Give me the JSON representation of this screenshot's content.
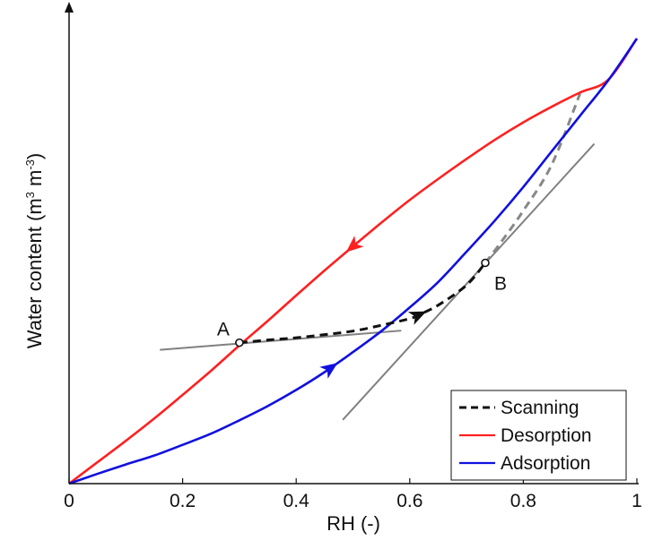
{
  "chart_data": {
    "type": "line",
    "title": "",
    "xlabel": "RH (-)",
    "ylabel": {
      "prefix": "Water content (m",
      "sup1": "3",
      "middle": " m",
      "sup2": "-3",
      "suffix": ")"
    },
    "xlim": [
      0,
      1
    ],
    "ylim": [
      0,
      1
    ],
    "grid": false,
    "x_ticks": [
      0,
      0.2,
      0.4,
      0.6,
      0.8,
      1
    ],
    "x_tick_labels": [
      "0",
      "0.2",
      "0.4",
      "0.6",
      "0.8",
      "1"
    ],
    "legend_position": "bottom-right",
    "series": [
      {
        "name": "Desorption",
        "color": "#ff2020",
        "style": "solid",
        "arrow_direction": "backward",
        "arrow_at_x": 0.5,
        "x": [
          0,
          0.05,
          0.1,
          0.15,
          0.2,
          0.25,
          0.3,
          0.35,
          0.4,
          0.45,
          0.5,
          0.55,
          0.6,
          0.65,
          0.7,
          0.75,
          0.8,
          0.85,
          0.9,
          0.95,
          1.0
        ],
        "y": [
          0,
          0.048,
          0.096,
          0.146,
          0.199,
          0.253,
          0.31,
          0.365,
          0.422,
          0.478,
          0.532,
          0.585,
          0.636,
          0.683,
          0.728,
          0.771,
          0.81,
          0.845,
          0.877,
          0.906,
          0.998
        ]
      },
      {
        "name": "Adsorption",
        "color": "#1010e0",
        "style": "solid",
        "arrow_direction": "forward",
        "arrow_at_x": 0.46,
        "x": [
          0,
          0.05,
          0.1,
          0.15,
          0.2,
          0.25,
          0.3,
          0.35,
          0.4,
          0.45,
          0.5,
          0.55,
          0.6,
          0.65,
          0.7,
          0.75,
          0.8,
          0.85,
          0.9,
          0.95,
          1.0
        ],
        "y": [
          0,
          0.022,
          0.043,
          0.063,
          0.087,
          0.112,
          0.142,
          0.174,
          0.21,
          0.25,
          0.295,
          0.342,
          0.395,
          0.452,
          0.52,
          0.59,
          0.665,
          0.745,
          0.825,
          0.905,
          0.998
        ]
      },
      {
        "name": "Scanning",
        "color": "#111111",
        "style": "dashed",
        "arrow_direction": "forward",
        "arrow_at_x": 0.615,
        "x": [
          0.3,
          0.35,
          0.4,
          0.45,
          0.5,
          0.55,
          0.6,
          0.615,
          0.65,
          0.7,
          0.733
        ],
        "y": [
          0.316,
          0.322,
          0.327,
          0.334,
          0.342,
          0.355,
          0.37,
          0.378,
          0.4,
          0.445,
          0.495
        ]
      }
    ],
    "extra_lines": [
      {
        "description": "gray dashed extension",
        "color": "#888888",
        "style": "dashed",
        "x": [
          0.733,
          0.76,
          0.8,
          0.85,
          0.9
        ],
        "y": [
          0.495,
          0.54,
          0.612,
          0.715,
          0.875
        ]
      },
      {
        "description": "tangent at A",
        "color": "#808080",
        "style": "solid",
        "x": [
          0.16,
          0.585
        ],
        "y": [
          0.3,
          0.343
        ]
      },
      {
        "description": "tangent at B",
        "color": "#808080",
        "style": "solid",
        "x": [
          0.482,
          0.925
        ],
        "y": [
          0.143,
          0.762
        ]
      }
    ],
    "points": [
      {
        "label": "A",
        "x": 0.3,
        "y": 0.316
      },
      {
        "label": "B",
        "x": 0.733,
        "y": 0.495
      }
    ],
    "legend": [
      {
        "label": "Scanning",
        "color": "#111111",
        "style": "dashed"
      },
      {
        "label": "Desorption",
        "color": "#ff2020",
        "style": "solid"
      },
      {
        "label": "Adsorption",
        "color": "#1010e0",
        "style": "solid"
      }
    ]
  }
}
